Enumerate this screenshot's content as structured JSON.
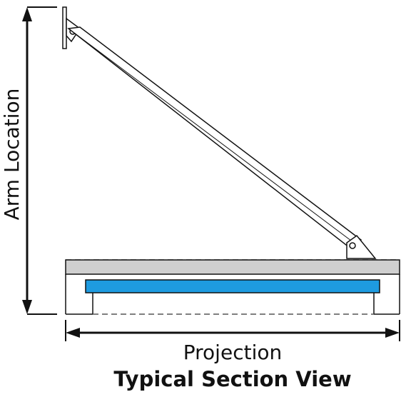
{
  "labels": {
    "arm_location": "Arm Location",
    "projection": "Projection",
    "caption": "Typical Section View"
  },
  "colors": {
    "line": "#111111",
    "bar_fill": "#cfcfcf",
    "blue_element": "#1e9be0",
    "dash": "#555555"
  }
}
